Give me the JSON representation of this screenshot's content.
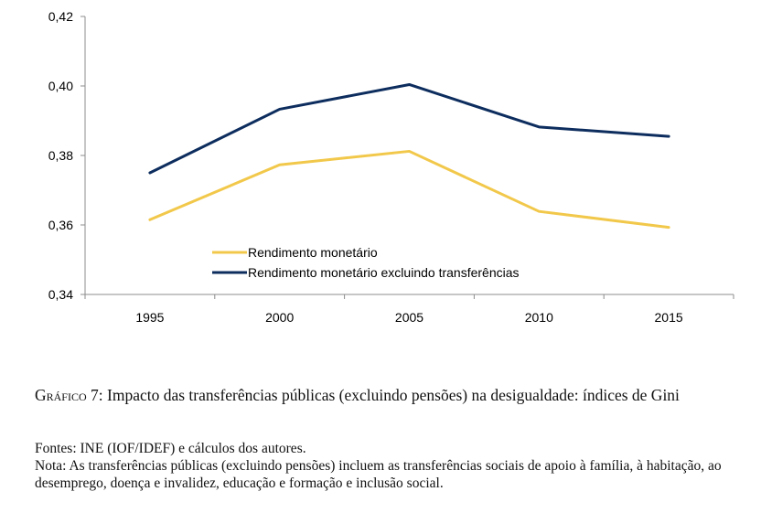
{
  "chart_data": {
    "type": "line",
    "title": "",
    "xlabel": "",
    "ylabel": "",
    "x": [
      "1995",
      "2000",
      "2005",
      "2010",
      "2015"
    ],
    "ylim": [
      0.34,
      0.42
    ],
    "yticks": [
      "0,34",
      "0,36",
      "0,38",
      "0,40",
      "0,42"
    ],
    "ytick_values": [
      0.34,
      0.36,
      0.38,
      0.4,
      0.42
    ],
    "grid": false,
    "legend_position": "bottom-center-inside",
    "series": [
      {
        "name": "Rendimento monetário",
        "color": "#f2c84b",
        "values": [
          0.3615,
          0.3773,
          0.3812,
          0.3639,
          0.3593
        ]
      },
      {
        "name": "Rendimento monetário excluindo transferências",
        "color": "#0d2d5e",
        "values": [
          0.375,
          0.3933,
          0.4004,
          0.3882,
          0.3855
        ]
      }
    ]
  },
  "caption": {
    "label": "Gráfico 7",
    "text": ": Impacto das transferências públicas (excluindo pensões) na desigualdade: índices de Gini",
    "sources": "Fontes: INE (IOF/IDEF) e cálculos dos autores.",
    "note": "Nota: As transferências públicas (excluindo pensões) incluem as transferências sociais de apoio à família, à habitação, ao desemprego, doença e invalidez, educação e formação e inclusão social."
  }
}
